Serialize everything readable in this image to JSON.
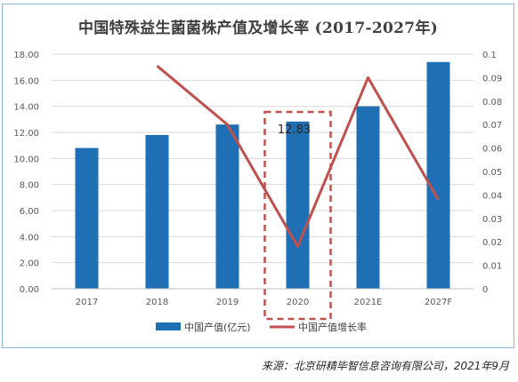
{
  "title": "中国特殊益生菌菌株产值及增长率 (2017-2027年)",
  "source": "来源：北京研精毕智信息咨询有限公司，2021年9月",
  "colors": {
    "bar": "#1f6fb4",
    "line": "#c0504d",
    "highlight": "#c0504d",
    "grid": "#d9d9d9"
  },
  "chart_data": {
    "type": "bar",
    "categories": [
      "2017",
      "2018",
      "2019",
      "2020",
      "2021E",
      "2027F"
    ],
    "series": [
      {
        "name": "中国产值(亿元)",
        "type": "bar",
        "axis": "left",
        "values": [
          10.8,
          11.8,
          12.6,
          12.83,
          14.0,
          17.4
        ]
      },
      {
        "name": "中国产值增长率",
        "type": "line",
        "axis": "right",
        "values": [
          null,
          0.095,
          0.07,
          0.018,
          0.09,
          0.038
        ]
      }
    ],
    "y_left": {
      "ylim": [
        0,
        18
      ],
      "ticks": [
        "0.00",
        "2.00",
        "4.00",
        "6.00",
        "8.00",
        "10.00",
        "12.00",
        "14.00",
        "16.00",
        "18.00"
      ]
    },
    "y_right": {
      "ylim": [
        0,
        0.1
      ],
      "ticks": [
        "0",
        "0.01",
        "0.02",
        "0.03",
        "0.04",
        "0.05",
        "0.06",
        "0.07",
        "0.08",
        "0.09",
        "0.1"
      ]
    },
    "data_labels": [
      {
        "category": "2020",
        "text": "12.83"
      }
    ],
    "highlight_category": "2020",
    "grid": true,
    "legend_position": "bottom"
  }
}
